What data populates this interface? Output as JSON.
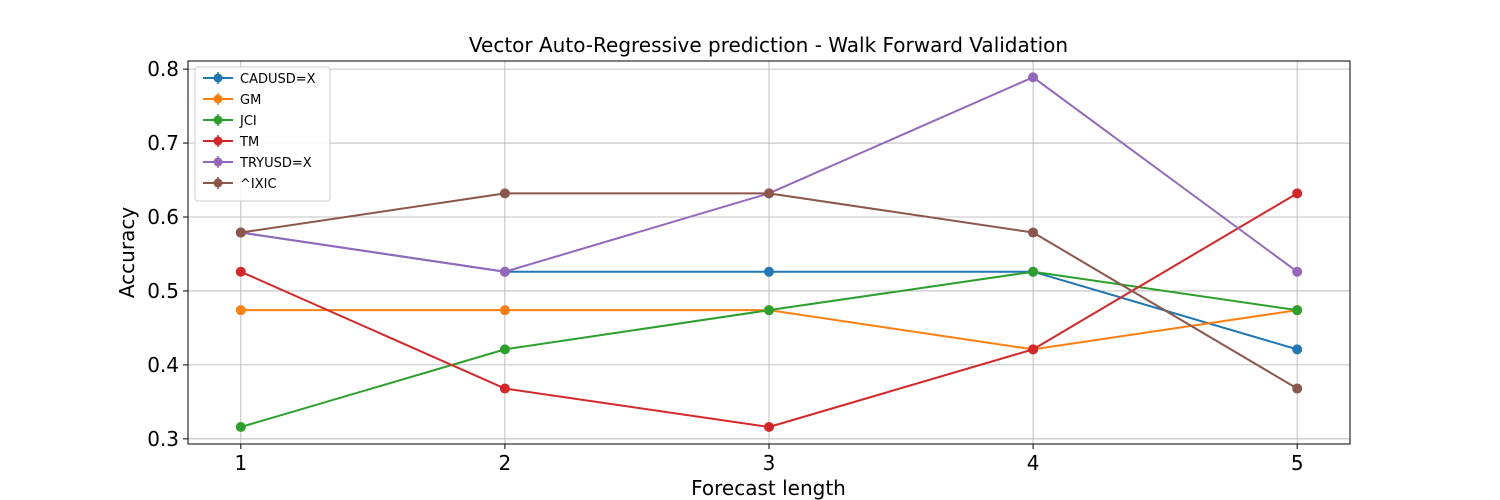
{
  "chart_data": {
    "type": "line",
    "title": "Vector Auto-Regressive prediction - Walk Forward Validation",
    "xlabel": "Forecast length",
    "ylabel": "Accuracy",
    "x": [
      1,
      2,
      3,
      4,
      5
    ],
    "xticks": [
      "1",
      "2",
      "3",
      "4",
      "5"
    ],
    "yticks": [
      "0.3",
      "0.4",
      "0.5",
      "0.6",
      "0.7",
      "0.8"
    ],
    "xlim": [
      0.8,
      5.2
    ],
    "ylim": [
      0.293,
      0.811
    ],
    "grid": true,
    "legend_position": "upper-left",
    "series": [
      {
        "name": "CADUSD=X",
        "color": "#1f77b4",
        "values": [
          0.579,
          0.526,
          0.526,
          0.526,
          0.421
        ]
      },
      {
        "name": "GM",
        "color": "#ff7f0e",
        "values": [
          0.474,
          0.474,
          0.474,
          0.421,
          0.474
        ]
      },
      {
        "name": "JCI",
        "color": "#2ca02c",
        "values": [
          0.316,
          0.421,
          0.474,
          0.526,
          0.474
        ]
      },
      {
        "name": "TM",
        "color": "#d62728",
        "values": [
          0.526,
          0.368,
          0.316,
          0.421,
          0.632
        ]
      },
      {
        "name": "TRYUSD=X",
        "color": "#9467bd",
        "values": [
          0.579,
          0.526,
          0.632,
          0.789,
          0.526
        ]
      },
      {
        "name": "^IXIC",
        "color": "#8c564b",
        "values": [
          0.579,
          0.632,
          0.632,
          0.579,
          0.368
        ]
      }
    ]
  }
}
